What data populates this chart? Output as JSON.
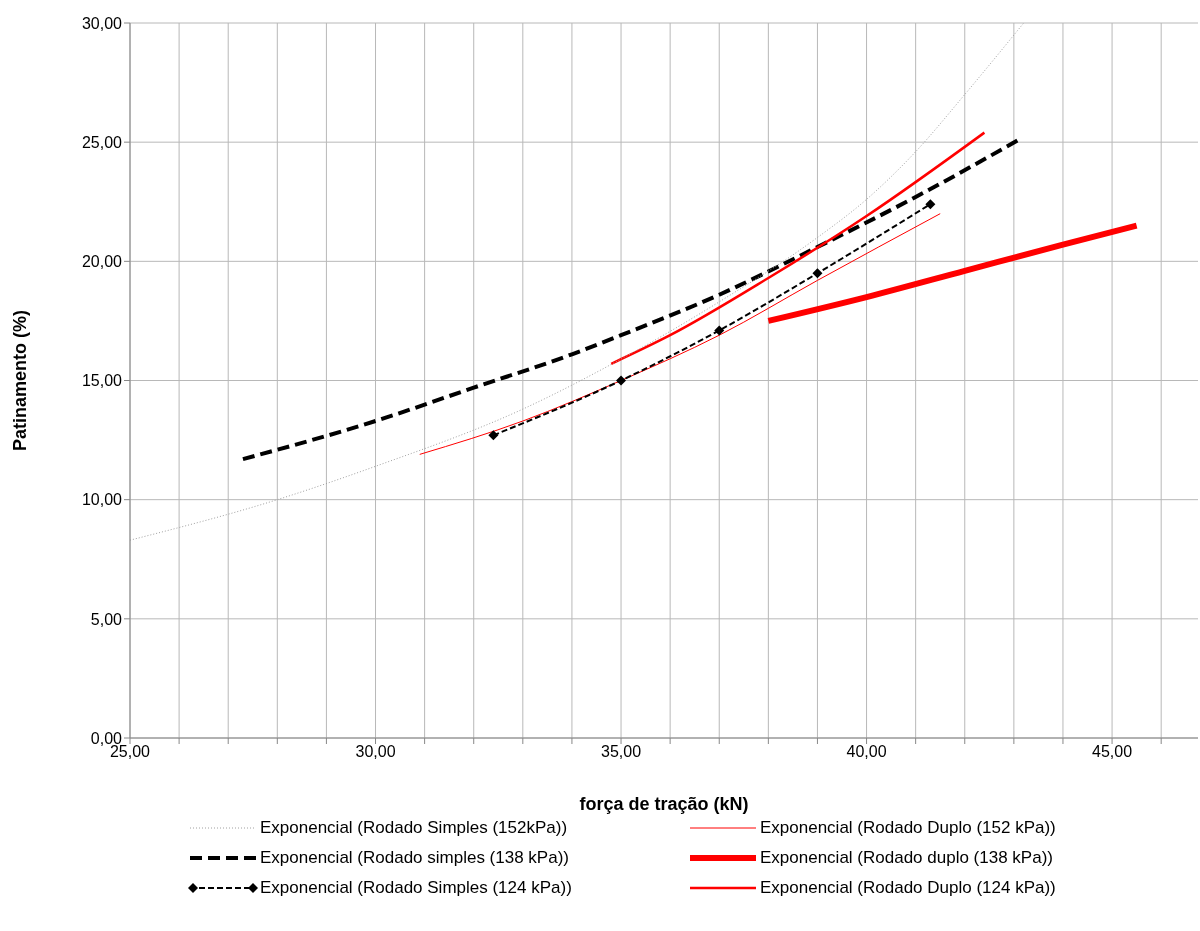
{
  "chart_data": {
    "type": "line",
    "xlabel": "força de tração (kN)",
    "ylabel": "Patinamento  (%)",
    "xlim": [
      25,
      46.75
    ],
    "xticks": [
      {
        "value": 25,
        "label": "25,00"
      },
      {
        "value": 26,
        "label": null
      },
      {
        "value": 27,
        "label": null
      },
      {
        "value": 28,
        "label": null
      },
      {
        "value": 29,
        "label": null
      },
      {
        "value": 30,
        "label": "30,00"
      },
      {
        "value": 31,
        "label": null
      },
      {
        "value": 32,
        "label": null
      },
      {
        "value": 33,
        "label": null
      },
      {
        "value": 34,
        "label": null
      },
      {
        "value": 35,
        "label": "35,00"
      },
      {
        "value": 36,
        "label": null
      },
      {
        "value": 37,
        "label": null
      },
      {
        "value": 38,
        "label": null
      },
      {
        "value": 39,
        "label": null
      },
      {
        "value": 40,
        "label": "40,00"
      },
      {
        "value": 41,
        "label": null
      },
      {
        "value": 42,
        "label": null
      },
      {
        "value": 43,
        "label": null
      },
      {
        "value": 44,
        "label": null
      },
      {
        "value": 45,
        "label": "45,00"
      },
      {
        "value": 46,
        "label": null
      }
    ],
    "ylim": [
      0,
      30
    ],
    "yticks": [
      {
        "value": 0,
        "label": "0,00"
      },
      {
        "value": 5,
        "label": "5,00"
      },
      {
        "value": 10,
        "label": "10,00"
      },
      {
        "value": 15,
        "label": "15,00"
      },
      {
        "value": 20,
        "label": "20,00"
      },
      {
        "value": 25,
        "label": "25,00"
      },
      {
        "value": 30,
        "label": "30,00"
      }
    ],
    "grid": true,
    "legend": "bottom",
    "series": [
      {
        "name": "Exponencial (Rodado Simples (152kPa))",
        "color": "#a0a0a0",
        "line_style": "dotted",
        "x": [
          25,
          28,
          30,
          33,
          35,
          37,
          39,
          40,
          41,
          42,
          43.2
        ],
        "values": [
          8.3,
          10.0,
          11.4,
          13.8,
          15.9,
          18.3,
          21.0,
          22.6,
          24.6,
          27.0,
          30.0
        ]
      },
      {
        "name": "Exponencial (Rodado Duplo (152 kPa))",
        "color": "#ff0000",
        "line_style": "solid",
        "x": [
          30.9,
          33,
          35,
          37,
          39,
          41.5
        ],
        "values": [
          11.9,
          13.3,
          15.0,
          16.9,
          19.2,
          22.0
        ]
      },
      {
        "name": "Exponencial (Rodado simples (138 kPa))",
        "color": "#000000",
        "line_style": "dashed",
        "x": [
          27.3,
          30,
          32,
          34,
          35,
          37,
          39,
          41,
          43.1
        ],
        "values": [
          11.7,
          13.3,
          14.7,
          16.1,
          16.9,
          18.6,
          20.6,
          22.7,
          25.1
        ]
      },
      {
        "name": "Exponencial (Rodado duplo (138 kPa))",
        "color": "#ff0000",
        "line_style": "solid",
        "x": [
          38,
          40,
          42,
          44,
          45.5
        ],
        "values": [
          17.5,
          18.5,
          19.6,
          20.7,
          21.5
        ]
      },
      {
        "name": "Exponencial (Rodado Simples (124  kPa))",
        "color": "#000000",
        "line_style": "dashed",
        "marker": "diamond",
        "x": [
          32.4,
          35,
          37,
          39,
          41.3
        ],
        "values": [
          12.7,
          15.0,
          17.1,
          19.5,
          22.4
        ]
      },
      {
        "name": "Exponencial (Rodado Duplo (124 kPa))",
        "color": "#ff0000",
        "line_style": "solid",
        "x": [
          34.8,
          36,
          38,
          40,
          42.4
        ],
        "values": [
          15.7,
          16.9,
          19.3,
          21.9,
          25.4
        ]
      }
    ]
  }
}
